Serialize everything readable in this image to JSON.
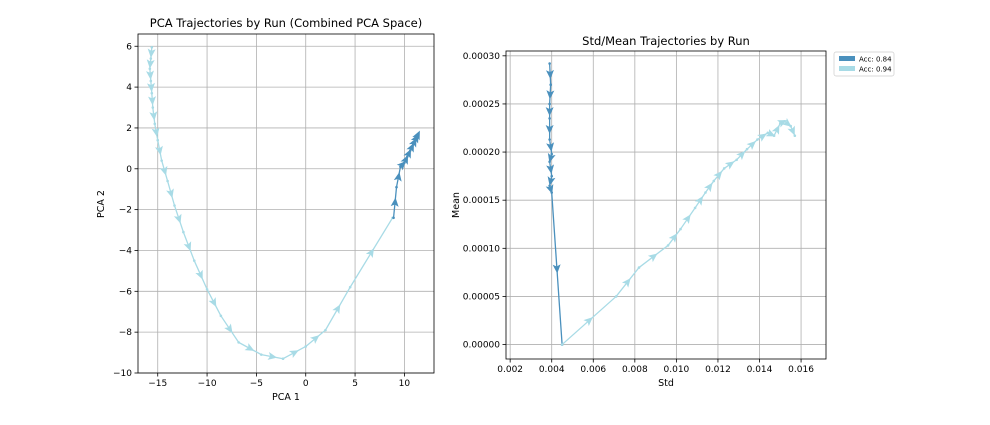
{
  "colors": {
    "run_084": "#4a90bd",
    "run_094": "#a8dbe6"
  },
  "chart_data": [
    {
      "type": "line",
      "title": "PCA Trajectories by Run (Combined PCA Space)",
      "xlabel": "PCA 1",
      "ylabel": "PCA 2",
      "xlim": [
        -17,
        13
      ],
      "ylim": [
        -10,
        6.6
      ],
      "xticks": [
        -15,
        -10,
        -5,
        0,
        5,
        10
      ],
      "yticks": [
        -10,
        -8,
        -6,
        -4,
        -2,
        0,
        2,
        4,
        6
      ],
      "xtick_labels": [
        "−15",
        "−10",
        "−5",
        "0",
        "5",
        "10"
      ],
      "ytick_labels": [
        "−10",
        "−8",
        "−6",
        "−4",
        "−2",
        "0",
        "2",
        "4",
        "6"
      ],
      "grid": true,
      "series": [
        {
          "color_key": "run_094",
          "points": [
            [
              -15.6,
              5.95
            ],
            [
              -15.7,
              5.4
            ],
            [
              -15.8,
              4.9
            ],
            [
              -15.7,
              4.3
            ],
            [
              -15.6,
              3.7
            ],
            [
              -15.5,
              3.0
            ],
            [
              -15.3,
              2.2
            ],
            [
              -15.0,
              1.4
            ],
            [
              -14.6,
              0.4
            ],
            [
              -14.0,
              -0.6
            ],
            [
              -13.3,
              -1.8
            ],
            [
              -12.4,
              -3.1
            ],
            [
              -11.3,
              -4.5
            ],
            [
              -10.0,
              -5.9
            ],
            [
              -8.6,
              -7.2
            ],
            [
              -6.8,
              -8.5
            ],
            [
              -4.5,
              -9.1
            ],
            [
              -2.3,
              -9.3
            ],
            [
              0.0,
              -8.7
            ],
            [
              2.0,
              -7.9
            ],
            [
              4.5,
              -5.8
            ],
            [
              8.8,
              -2.4
            ]
          ]
        },
        {
          "color_key": "run_084",
          "points": [
            [
              8.9,
              -2.4
            ],
            [
              9.2,
              -0.9
            ],
            [
              9.6,
              0.1
            ],
            [
              10.0,
              0.3
            ],
            [
              10.3,
              0.6
            ],
            [
              10.6,
              0.9
            ],
            [
              10.9,
              1.2
            ],
            [
              11.1,
              1.4
            ],
            [
              11.3,
              1.6
            ],
            [
              11.4,
              1.7
            ]
          ]
        }
      ]
    },
    {
      "type": "line",
      "title": "Std/Mean Trajectories by Run",
      "xlabel": "Std",
      "ylabel": "Mean",
      "xlim": [
        0.0018,
        0.0172
      ],
      "ylim": [
        -1.5e-05,
        0.000305
      ],
      "xticks": [
        0.002,
        0.004,
        0.006,
        0.008,
        0.01,
        0.012,
        0.014,
        0.016
      ],
      "yticks": [
        0.0,
        5e-05,
        0.0001,
        0.00015,
        0.0002,
        0.00025,
        0.0003
      ],
      "xtick_labels": [
        "0.002",
        "0.004",
        "0.006",
        "0.008",
        "0.010",
        "0.012",
        "0.014",
        "0.016"
      ],
      "ytick_labels": [
        "0.00000",
        "0.00005",
        "0.00010",
        "0.00015",
        "0.00020",
        "0.00025",
        "0.00030"
      ],
      "grid": true,
      "legend": {
        "placement": "outside-top-right",
        "entries": [
          {
            "label": "Acc: 0.84",
            "color_key": "run_084"
          },
          {
            "label": "Acc: 0.94",
            "color_key": "run_094"
          }
        ]
      },
      "series": [
        {
          "name": "Acc: 0.84",
          "color_key": "run_084",
          "points": [
            [
              0.0039,
              0.000292
            ],
            [
              0.00395,
              0.00027
            ],
            [
              0.0039,
              0.00025
            ],
            [
              0.0039,
              0.000235
            ],
            [
              0.0039,
              0.000213
            ],
            [
              0.004,
              0.000198
            ],
            [
              0.0039,
              0.00019
            ],
            [
              0.004,
              0.000175
            ],
            [
              0.0039,
              0.000165
            ],
            [
              0.004,
              0.000158
            ],
            [
              0.0045,
              0.0
            ]
          ]
        },
        {
          "name": "Acc: 0.94",
          "color_key": "run_094",
          "points": [
            [
              0.0045,
              0.0
            ],
            [
              0.0071,
              5e-05
            ],
            [
              0.0082,
              8e-05
            ],
            [
              0.0096,
              0.000103
            ],
            [
              0.0102,
              0.00012
            ],
            [
              0.0109,
              0.000142
            ],
            [
              0.0114,
              0.000158
            ],
            [
              0.0118,
              0.00017
            ],
            [
              0.0123,
              0.000183
            ],
            [
              0.0129,
              0.000192
            ],
            [
              0.0134,
              0.000203
            ],
            [
              0.0139,
              0.000213
            ],
            [
              0.0144,
              0.00022
            ],
            [
              0.0147,
              0.000217
            ],
            [
              0.015,
              0.00023
            ],
            [
              0.0152,
              0.000232
            ],
            [
              0.0155,
              0.000227
            ],
            [
              0.0157,
              0.000217
            ]
          ]
        }
      ]
    }
  ]
}
